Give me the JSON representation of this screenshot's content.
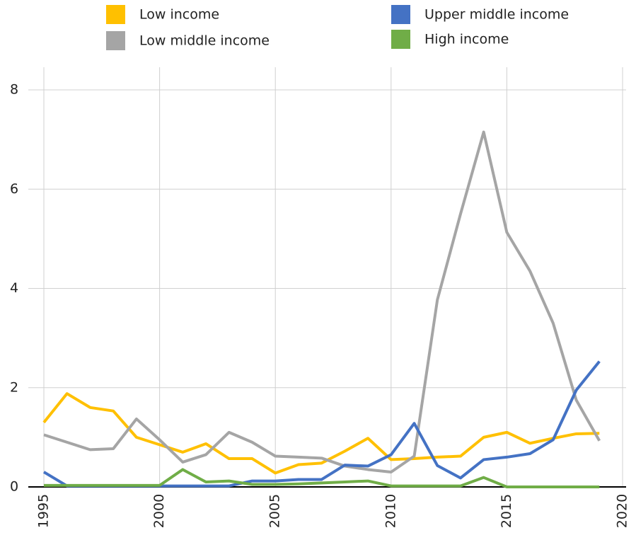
{
  "chart_data": {
    "type": "line",
    "x": [
      1995,
      1996,
      1997,
      1998,
      1999,
      2000,
      2001,
      2002,
      2003,
      2004,
      2005,
      2006,
      2007,
      2008,
      2009,
      2010,
      2011,
      2012,
      2013,
      2014,
      2015,
      2016,
      2017,
      2018,
      2019
    ],
    "series": [
      {
        "name": "Low income",
        "color": "#ffc000",
        "values": [
          1.3,
          1.88,
          1.6,
          1.53,
          1.0,
          0.85,
          0.7,
          0.87,
          0.57,
          0.57,
          0.28,
          0.45,
          0.48,
          0.72,
          0.98,
          0.55,
          0.57,
          0.6,
          0.62,
          1.0,
          1.1,
          0.88,
          0.98,
          1.07,
          1.08
        ]
      },
      {
        "name": "Low middle income",
        "color": "#a5a5a5",
        "values": [
          1.05,
          0.9,
          0.75,
          0.77,
          1.37,
          0.95,
          0.5,
          0.65,
          1.1,
          0.9,
          0.62,
          0.6,
          0.58,
          0.42,
          0.35,
          0.3,
          0.62,
          3.77,
          5.5,
          7.15,
          5.13,
          4.35,
          3.3,
          1.75,
          0.93
        ]
      },
      {
        "name": "Upper middle income",
        "color": "#4472c4",
        "values": [
          0.3,
          0.02,
          0.02,
          0.02,
          0.02,
          0.02,
          0.02,
          0.02,
          0.02,
          0.12,
          0.12,
          0.15,
          0.15,
          0.44,
          0.42,
          0.65,
          1.28,
          0.43,
          0.18,
          0.55,
          0.6,
          0.67,
          0.95,
          1.95,
          2.53
        ]
      },
      {
        "name": "High income",
        "color": "#70ad47",
        "values": [
          0.03,
          0.03,
          0.03,
          0.03,
          0.03,
          0.03,
          0.35,
          0.1,
          0.12,
          0.05,
          0.05,
          0.06,
          0.08,
          0.1,
          0.12,
          0.02,
          0.02,
          0.02,
          0.02,
          0.19,
          0.0,
          0.0,
          0.0,
          0.0,
          0.0
        ]
      }
    ],
    "xlim": [
      1995,
      2020
    ],
    "xticks": [
      1995,
      2000,
      2005,
      2010,
      2015,
      2020
    ],
    "ylim": [
      0,
      8
    ],
    "yticks": [
      0,
      2,
      4,
      6,
      8
    ],
    "grid": true
  }
}
